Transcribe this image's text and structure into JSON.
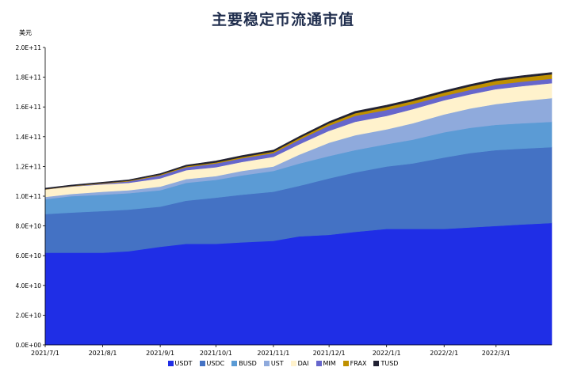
{
  "chart_data": {
    "type": "area",
    "stacked": true,
    "title": "主要稳定币流通市值",
    "ylabel": "美元",
    "ylim": [
      0,
      200000000000
    ],
    "yticks": [
      "0.0E+00",
      "2.0E+10",
      "4.0E+10",
      "6.0E+10",
      "8.0E+10",
      "1.0E+11",
      "1.2E+11",
      "1.4E+11",
      "1.6E+11",
      "1.8E+11",
      "2.0E+11"
    ],
    "xticks": [
      "2021/7/1",
      "2021/8/1",
      "2021/9/1",
      "2021/10/1",
      "2021/11/1",
      "2021/12/1",
      "2022/1/1",
      "2022/2/1",
      "2022/3/1"
    ],
    "x": [
      "2021/7/1",
      "2021/7/15",
      "2021/8/1",
      "2021/8/15",
      "2021/9/1",
      "2021/9/15",
      "2021/10/1",
      "2021/10/15",
      "2021/11/1",
      "2021/11/15",
      "2021/12/1",
      "2021/12/15",
      "2022/1/1",
      "2022/1/15",
      "2022/2/1",
      "2022/2/15",
      "2022/3/1",
      "2022/3/15",
      "2022/3/31"
    ],
    "legend_position": "bottom",
    "series": [
      {
        "name": "USDT",
        "color": "#1f2ee6",
        "values": [
          62,
          62,
          62,
          63,
          66,
          68,
          68,
          69,
          70,
          73,
          74,
          76,
          78,
          78,
          78,
          79,
          80,
          81,
          82
        ]
      },
      {
        "name": "USDC",
        "color": "#4472c4",
        "values": [
          26,
          27,
          28,
          28,
          27,
          29,
          31,
          32,
          33,
          34,
          38,
          40,
          42,
          44,
          48,
          50,
          51,
          51,
          51
        ]
      },
      {
        "name": "BUSD",
        "color": "#5b9bd5",
        "values": [
          10,
          11,
          11,
          11,
          11,
          12,
          12,
          13,
          14,
          15,
          15,
          15,
          15,
          16,
          17,
          17,
          17,
          17,
          17
        ]
      },
      {
        "name": "UST",
        "color": "#8faadc",
        "values": [
          1.5,
          1.5,
          2,
          2,
          2.5,
          2.5,
          2.5,
          3,
          3,
          6,
          9,
          10,
          10,
          11,
          12,
          13,
          14,
          15,
          16
        ]
      },
      {
        "name": "DAI",
        "color": "#fff2cc",
        "values": [
          5,
          5,
          5,
          5,
          5.5,
          6,
          6,
          6,
          6.5,
          7,
          8,
          9,
          9,
          9.5,
          9.5,
          9.5,
          10,
          10,
          10
        ]
      },
      {
        "name": "MIM",
        "color": "#6666cc",
        "values": [
          0.1,
          0.2,
          0.5,
          1,
          2,
          2,
          2.5,
          2.5,
          2.5,
          3,
          3.5,
          4,
          4,
          3.5,
          3,
          3,
          3,
          3,
          3
        ]
      },
      {
        "name": "FRAX",
        "color": "#bf9000",
        "values": [
          0.2,
          0.2,
          0.3,
          0.4,
          0.5,
          0.6,
          0.7,
          0.8,
          1,
          1.2,
          1.5,
          1.8,
          2,
          2,
          2.2,
          2.4,
          2.6,
          2.8,
          3
        ]
      },
      {
        "name": "TUSD",
        "color": "#222233",
        "values": [
          0.6,
          0.6,
          0.6,
          0.6,
          0.7,
          0.8,
          1,
          1,
          1,
          1,
          1.1,
          1.2,
          1.2,
          1.2,
          1.2,
          1.2,
          1.2,
          1.2,
          1.2
        ]
      }
    ],
    "value_unit": 1000000000,
    "grid": false
  }
}
